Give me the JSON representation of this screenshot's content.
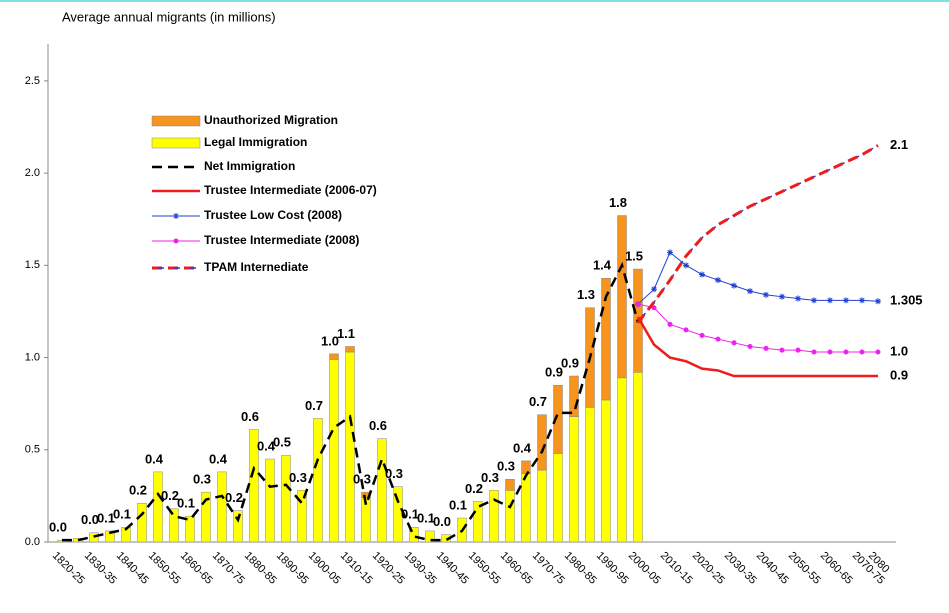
{
  "chart_data": {
    "type": "bar_line",
    "ylabel": "Average annual migrants (in millions)",
    "ylim": [
      0,
      2.7
    ],
    "yticks": [
      {
        "value": 0,
        "label": "0.0"
      },
      {
        "value": 0.5,
        "label": "0.5"
      },
      {
        "value": 1,
        "label": "1.0"
      },
      {
        "value": 1.5,
        "label": "1.5"
      },
      {
        "value": 2,
        "label": "2.0"
      },
      {
        "value": 2.5,
        "label": "2.5"
      }
    ],
    "categories": [
      "1820-25",
      null,
      "1830-35",
      null,
      "1840-45",
      null,
      "1850-55",
      null,
      "1860-65",
      null,
      "1870-75",
      null,
      "1880-85",
      null,
      "1890-95",
      null,
      "1900-05",
      null,
      "1910-15",
      null,
      "1920-25",
      null,
      "1930-35",
      null,
      "1940-45",
      null,
      "1950-55",
      null,
      "1960-65",
      null,
      "1970-75",
      null,
      "1980-85",
      null,
      "1990-95",
      null,
      "2000-05",
      null,
      "2010-15",
      null,
      "2020-25",
      null,
      "2030-35",
      null,
      "2040-45",
      null,
      "2050-55",
      null,
      "2060-65",
      null,
      "2070-75",
      "2080"
    ],
    "bar_labels": [
      "0.0",
      null,
      "0.0",
      "0.1",
      "0.1",
      "0.2",
      "0.4",
      "0.2",
      "0.1",
      "0.3",
      "0.4",
      "0.2",
      "0.6",
      "0.4",
      "0.5",
      "0.3",
      "0.7",
      "1.0",
      "1.1",
      "0.3",
      "0.6",
      "0.3",
      "0.1",
      "0.1",
      "0.0",
      "0.1",
      "0.2",
      "0.3",
      "0.3",
      "0.4",
      "0.7",
      "0.9",
      "0.9",
      "1.3",
      "1.4",
      "1.8",
      "1.5",
      null,
      null,
      null,
      null,
      null,
      null,
      null,
      null,
      null,
      null,
      null,
      null,
      null,
      null,
      null
    ],
    "series": [
      {
        "name": "Unauthorized Migration",
        "kind": "bar",
        "stack_on": 1,
        "color": "#f7941d",
        "values": [
          null,
          null,
          null,
          null,
          null,
          null,
          null,
          null,
          null,
          null,
          null,
          null,
          null,
          null,
          null,
          null,
          null,
          0.03,
          0.03,
          0.03,
          null,
          null,
          null,
          null,
          null,
          null,
          null,
          null,
          0.06,
          0.07,
          0.3,
          0.37,
          0.22,
          0.54,
          0.66,
          0.88,
          0.56,
          null,
          null,
          null,
          null,
          null,
          null,
          null,
          null,
          null,
          null,
          null,
          null,
          null,
          null,
          null
        ]
      },
      {
        "name": "Legal Immigration",
        "kind": "bar",
        "color": "#ffff00",
        "values": [
          0.01,
          0.02,
          0.05,
          0.06,
          0.08,
          0.21,
          0.38,
          0.18,
          0.14,
          0.27,
          0.38,
          0.17,
          0.61,
          0.45,
          0.47,
          0.28,
          0.67,
          0.99,
          1.03,
          0.24,
          0.56,
          0.3,
          0.08,
          0.06,
          0.04,
          0.13,
          0.22,
          0.28,
          0.28,
          0.37,
          0.39,
          0.48,
          0.68,
          0.73,
          0.77,
          0.89,
          0.92,
          null,
          null,
          null,
          null,
          null,
          null,
          null,
          null,
          null,
          null,
          null,
          null,
          null,
          null,
          null
        ]
      },
      {
        "name": "Net Immigration",
        "kind": "line",
        "style": "dash",
        "color": "#000000",
        "values": [
          0.01,
          0.01,
          0.03,
          0.05,
          0.07,
          0.15,
          0.26,
          0.14,
          0.12,
          0.23,
          0.25,
          0.12,
          0.4,
          0.3,
          0.31,
          0.21,
          0.45,
          0.62,
          0.68,
          0.2,
          0.45,
          0.22,
          0.03,
          0.01,
          0.01,
          0.06,
          0.19,
          0.23,
          0.19,
          0.36,
          0.49,
          0.7,
          0.7,
          1.0,
          1.33,
          1.5,
          1.19,
          null,
          null,
          null,
          null,
          null,
          null,
          null,
          null,
          null,
          null,
          null,
          null,
          null,
          null,
          null
        ]
      },
      {
        "name": "Trustee Intermediate (2006-07)",
        "kind": "line",
        "style": "solid",
        "color": "#ee1c1c",
        "end_label": "0.9",
        "values": [
          null,
          null,
          null,
          null,
          null,
          null,
          null,
          null,
          null,
          null,
          null,
          null,
          null,
          null,
          null,
          null,
          null,
          null,
          null,
          null,
          null,
          null,
          null,
          null,
          null,
          null,
          null,
          null,
          null,
          null,
          null,
          null,
          null,
          null,
          null,
          null,
          1.22,
          1.07,
          1.0,
          0.98,
          0.94,
          0.93,
          0.9,
          0.9,
          0.9,
          0.9,
          0.9,
          0.9,
          0.9,
          0.9,
          0.9,
          0.9
        ]
      },
      {
        "name": "Trustee Low Cost (2008)",
        "kind": "line",
        "style": "solid",
        "marker": "star",
        "color": "#1f3fd0",
        "end_label": "1.305",
        "values": [
          null,
          null,
          null,
          null,
          null,
          null,
          null,
          null,
          null,
          null,
          null,
          null,
          null,
          null,
          null,
          null,
          null,
          null,
          null,
          null,
          null,
          null,
          null,
          null,
          null,
          null,
          null,
          null,
          null,
          null,
          null,
          null,
          null,
          null,
          null,
          null,
          1.29,
          1.37,
          1.57,
          1.5,
          1.45,
          1.42,
          1.39,
          1.36,
          1.34,
          1.33,
          1.32,
          1.31,
          1.31,
          1.31,
          1.31,
          1.305
        ]
      },
      {
        "name": "Trustee Intermediate (2008)",
        "kind": "line",
        "style": "solid",
        "marker": "dot",
        "color": "#ee22ee",
        "end_label": "1.0",
        "values": [
          null,
          null,
          null,
          null,
          null,
          null,
          null,
          null,
          null,
          null,
          null,
          null,
          null,
          null,
          null,
          null,
          null,
          null,
          null,
          null,
          null,
          null,
          null,
          null,
          null,
          null,
          null,
          null,
          null,
          null,
          null,
          null,
          null,
          null,
          null,
          null,
          1.29,
          1.27,
          1.18,
          1.15,
          1.12,
          1.1,
          1.08,
          1.06,
          1.05,
          1.04,
          1.04,
          1.03,
          1.03,
          1.03,
          1.03,
          1.03
        ]
      },
      {
        "name": "TPAM Internediate",
        "kind": "line",
        "style": "tpam",
        "color": "#ee1c1c",
        "color2": "#1f3fd0",
        "end_label": "2.1",
        "values": [
          null,
          null,
          null,
          null,
          null,
          null,
          null,
          null,
          null,
          null,
          null,
          null,
          null,
          null,
          null,
          null,
          null,
          null,
          null,
          null,
          null,
          null,
          null,
          null,
          null,
          null,
          null,
          null,
          null,
          null,
          null,
          null,
          null,
          null,
          null,
          null,
          1.19,
          1.3,
          1.42,
          1.55,
          1.65,
          1.72,
          1.77,
          1.82,
          1.86,
          1.9,
          1.94,
          1.98,
          2.02,
          2.06,
          2.1,
          2.15
        ]
      }
    ]
  }
}
